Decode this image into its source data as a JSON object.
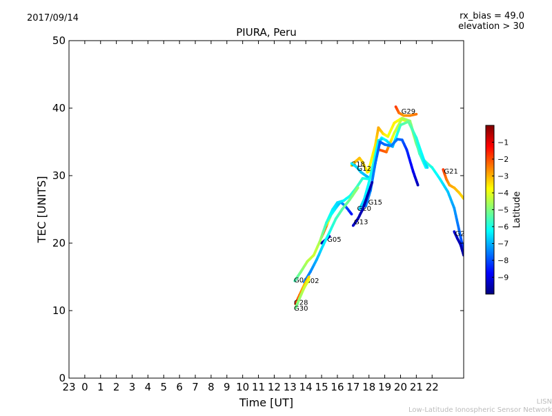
{
  "header": {
    "date": "2017/09/14",
    "rx_bias": "rx_bias = 49.0",
    "elevation": "elevation > 30"
  },
  "footer": {
    "network_short": "LISN",
    "network_long": "Low-Latitude Ionospheric Sensor Network"
  },
  "chart_data": {
    "type": "scatter",
    "title": "PIURA, Peru",
    "xlabel": "Time [UT]",
    "ylabel": "TEC [UNITS]",
    "xlim": [
      -1,
      24
    ],
    "ylim": [
      0,
      50
    ],
    "x_tick_labels": [
      "23",
      "0",
      "1",
      "2",
      "3",
      "4",
      "5",
      "6",
      "7",
      "8",
      "9",
      "10",
      "11",
      "12",
      "13",
      "14",
      "15",
      "16",
      "17",
      "18",
      "19",
      "20",
      "21",
      "22"
    ],
    "y_ticks": [
      0,
      10,
      20,
      30,
      40,
      50
    ],
    "grid": false,
    "colorbar": {
      "label": "Latitude",
      "range": [
        -10,
        0
      ],
      "tick_labels": [
        "-1",
        "-2",
        "-3",
        "-4",
        "-5",
        "-6",
        "-7",
        "-8",
        "-9"
      ],
      "colormap": [
        "#00007f",
        "#0000ff",
        "#007fff",
        "#00ffff",
        "#7fff7f",
        "#ffff00",
        "#ff7f00",
        "#ff0000",
        "#7f0000"
      ]
    },
    "series": [
      {
        "name": "G29",
        "label_at": [
          20.05,
          39.6
        ],
        "points": [
          [
            19.7,
            40.2
          ],
          [
            19.9,
            39.3
          ],
          [
            20.2,
            38.9
          ],
          [
            20.6,
            38.9
          ],
          [
            21.0,
            39.1
          ]
        ],
        "lat": [
          -1.8,
          -2.3,
          -2.8,
          -2.6,
          -2.4
        ]
      },
      {
        "name": "",
        "points": [
          [
            18.0,
            31.0
          ],
          [
            18.4,
            34.5
          ],
          [
            18.6,
            37.1
          ],
          [
            18.9,
            36.2
          ],
          [
            19.2,
            35.8
          ],
          [
            19.6,
            37.8
          ],
          [
            20.0,
            38.4
          ],
          [
            20.6,
            37.9
          ],
          [
            21.0,
            34.7
          ],
          [
            21.4,
            32.5
          ],
          [
            21.7,
            31.8
          ],
          [
            22.0,
            31.2
          ],
          [
            22.5,
            29.5
          ],
          [
            23.0,
            27.6
          ],
          [
            23.4,
            25.2
          ],
          [
            23.8,
            21.0
          ],
          [
            24.0,
            18.8
          ]
        ],
        "lat": [
          -3.8,
          -3.5,
          -2.9,
          -3.4,
          -3.9,
          -3.6,
          -3.8,
          -4.1,
          -4.4,
          -5.2,
          -5.8,
          -6.0,
          -6.4,
          -6.8,
          -7.2,
          -7.8,
          -8.4
        ]
      },
      {
        "name": "",
        "points": [
          [
            18.7,
            33.8
          ],
          [
            19.1,
            33.5
          ],
          [
            19.6,
            36.3
          ],
          [
            20.1,
            38.5
          ],
          [
            20.6,
            38.1
          ],
          [
            21.2,
            33.3
          ],
          [
            21.6,
            31.2
          ]
        ],
        "lat": [
          -2.0,
          -2.2,
          -4.2,
          -4.5,
          -4.8,
          -5.6,
          -6.2
        ]
      },
      {
        "name": "",
        "points": [
          [
            18.5,
            34.0
          ],
          [
            18.8,
            35.6
          ],
          [
            19.1,
            35.2
          ],
          [
            19.5,
            34.3
          ],
          [
            20.0,
            37.5
          ],
          [
            20.5,
            38.0
          ],
          [
            21.0,
            35.6
          ],
          [
            21.5,
            32.2
          ],
          [
            21.7,
            31.2
          ]
        ],
        "lat": [
          -6.6,
          -6.2,
          -6.4,
          -6.9,
          -5.6,
          -5.2,
          -5.9,
          -6.4,
          -6.6
        ]
      },
      {
        "name": "G21",
        "label_at": [
          22.75,
          30.7
        ],
        "points": [
          [
            22.7,
            30.9
          ],
          [
            22.9,
            29.5
          ],
          [
            23.1,
            28.6
          ],
          [
            23.4,
            28.2
          ],
          [
            23.7,
            27.5
          ],
          [
            24.0,
            26.6
          ]
        ],
        "lat": [
          -1.8,
          -2.4,
          -2.8,
          -3.0,
          -3.2,
          -3.4
        ]
      },
      {
        "name": "G25",
        "label_at": [
          23.45,
          21.5
        ],
        "points": [
          [
            23.4,
            21.7
          ],
          [
            23.6,
            20.7
          ],
          [
            23.8,
            19.8
          ],
          [
            24.0,
            18.2
          ]
        ],
        "lat": [
          -9.2,
          -9.4,
          -9.5,
          -9.6
        ]
      },
      {
        "name": "G18",
        "label_at": [
          16.85,
          31.8
        ],
        "points": [
          [
            16.9,
            31.5
          ],
          [
            17.1,
            32.0
          ],
          [
            17.4,
            32.6
          ],
          [
            17.6,
            32.0
          ],
          [
            17.9,
            30.5
          ],
          [
            18.1,
            30.8
          ]
        ],
        "lat": [
          -3.4,
          -3.2,
          -3.1,
          -3.4,
          -3.6,
          -3.5
        ]
      },
      {
        "name": "G12",
        "label_at": [
          17.25,
          31.1
        ],
        "points": [
          [
            16.9,
            31.8
          ],
          [
            17.2,
            31.3
          ],
          [
            17.5,
            30.5
          ],
          [
            17.8,
            30.0
          ],
          [
            18.0,
            29.7
          ]
        ],
        "lat": [
          -6.4,
          -6.6,
          -6.8,
          -6.9,
          -7.0
        ]
      },
      {
        "name": "G20",
        "label_at": [
          17.25,
          25.2
        ],
        "points": [
          [
            17.4,
            25.0
          ],
          [
            17.7,
            26.5
          ],
          [
            18.0,
            29.0
          ],
          [
            18.3,
            32.0
          ],
          [
            18.6,
            35.2
          ],
          [
            18.8,
            35.4
          ]
        ],
        "lat": [
          -6.8,
          -6.5,
          -6.2,
          -5.9,
          -6.4,
          -6.7
        ]
      },
      {
        "name": "G15",
        "label_at": [
          17.95,
          26.1
        ],
        "points": [
          [
            17.8,
            25.5
          ],
          [
            18.1,
            27.8
          ],
          [
            18.4,
            31.8
          ],
          [
            18.7,
            35.0
          ],
          [
            19.0,
            34.6
          ],
          [
            19.4,
            34.4
          ],
          [
            19.8,
            35.4
          ],
          [
            20.1,
            35.3
          ],
          [
            20.4,
            33.8
          ],
          [
            20.8,
            30.6
          ],
          [
            21.1,
            28.6
          ]
        ],
        "lat": [
          -7.6,
          -7.4,
          -7.6,
          -7.9,
          -7.7,
          -7.5,
          -7.6,
          -7.8,
          -8.3,
          -8.9,
          -9.4
        ]
      },
      {
        "name": "G13",
        "label_at": [
          17.05,
          23.2
        ],
        "points": [
          [
            17.0,
            22.6
          ],
          [
            17.3,
            23.6
          ],
          [
            17.6,
            25.0
          ],
          [
            17.9,
            27.0
          ],
          [
            18.2,
            29.0
          ]
        ],
        "lat": [
          -9.3,
          -9.4,
          -9.5,
          -9.6,
          -9.5
        ]
      },
      {
        "name": "G05",
        "label_at": [
          15.35,
          20.6
        ],
        "points": [
          [
            15.0,
            20.9
          ],
          [
            15.3,
            22.5
          ],
          [
            15.6,
            24.2
          ],
          [
            15.9,
            25.2
          ],
          [
            16.2,
            26.1
          ],
          [
            16.5,
            25.5
          ],
          [
            16.9,
            24.3
          ]
        ],
        "lat": [
          -2.2,
          -2.5,
          -6.0,
          -6.5,
          -7.0,
          -7.8,
          -8.6
        ]
      },
      {
        "name": "",
        "points": [
          [
            15.0,
            20.0
          ],
          [
            15.3,
            20.6
          ],
          [
            15.5,
            21.0
          ]
        ],
        "lat": [
          -9.5,
          -9.6,
          -9.7
        ]
      },
      {
        "name": "G06",
        "label_at": [
          13.25,
          14.6
        ],
        "points": [
          [
            13.3,
            14.4
          ],
          [
            13.7,
            15.8
          ],
          [
            14.1,
            17.3
          ],
          [
            14.5,
            18.2
          ],
          [
            14.9,
            20.3
          ],
          [
            15.3,
            23.0
          ],
          [
            15.7,
            25.0
          ],
          [
            16.0,
            26.0
          ],
          [
            16.4,
            26.3
          ],
          [
            16.8,
            27.0
          ],
          [
            17.2,
            28.2
          ],
          [
            17.6,
            29.6
          ],
          [
            18.0,
            29.5
          ]
        ],
        "lat": [
          -5.6,
          -5.0,
          -4.5,
          -4.2,
          -4.6,
          -5.8,
          -6.4,
          -6.6,
          -6.4,
          -6.0,
          -5.6,
          -5.8,
          -6.2
        ]
      },
      {
        "name": "G02",
        "label_at": [
          13.95,
          14.5
        ],
        "points": [
          [
            13.9,
            14.2
          ],
          [
            14.3,
            15.8
          ],
          [
            14.7,
            17.6
          ],
          [
            15.1,
            19.7
          ],
          [
            15.5,
            21.6
          ],
          [
            15.9,
            23.6
          ],
          [
            16.3,
            25.0
          ],
          [
            16.8,
            26.5
          ],
          [
            17.3,
            28.2
          ]
        ],
        "lat": [
          -7.6,
          -7.4,
          -7.0,
          -6.5,
          -6.1,
          -5.7,
          -5.4,
          -5.1,
          -4.8
        ]
      },
      {
        "name": "G28",
        "label_at": [
          13.25,
          11.3
        ],
        "points": [
          [
            13.35,
            11.0
          ],
          [
            13.6,
            12.3
          ],
          [
            13.9,
            13.8
          ],
          [
            14.2,
            15.0
          ]
        ],
        "lat": [
          -1.6,
          -2.4,
          -3.0,
          -3.3
        ]
      },
      {
        "name": "G30",
        "label_at": [
          13.25,
          10.4
        ],
        "points": [
          [
            13.35,
            10.4
          ],
          [
            13.6,
            11.8
          ],
          [
            13.9,
            13.4
          ],
          [
            14.2,
            14.6
          ]
        ],
        "lat": [
          -5.2,
          -4.8,
          -4.3,
          -3.9
        ]
      }
    ]
  }
}
